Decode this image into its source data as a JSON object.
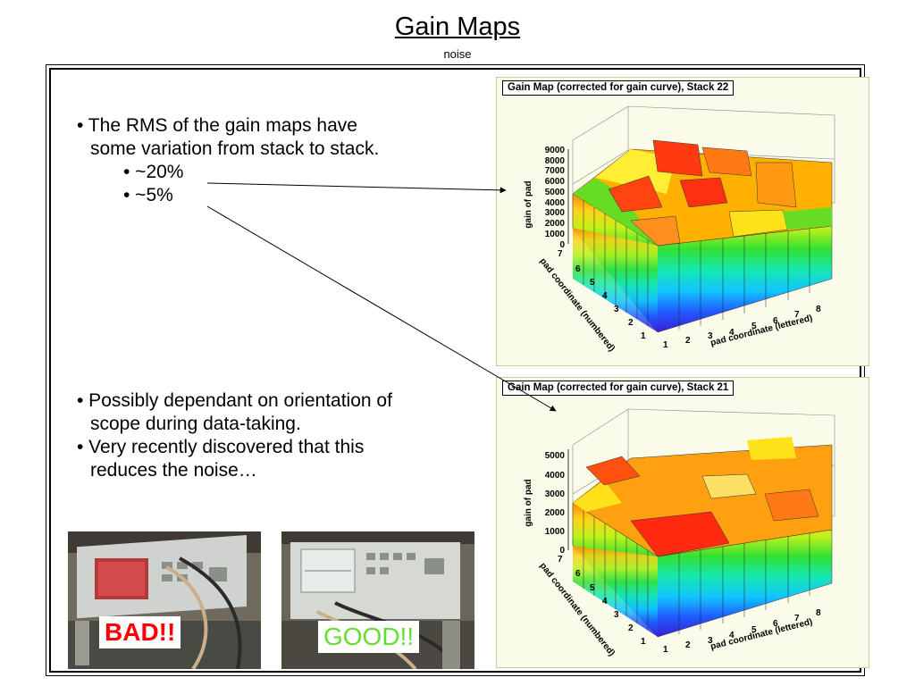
{
  "slide": {
    "title": "Gain Maps",
    "subtitle": "noise"
  },
  "bullets_top": {
    "line1": "• The RMS of the gain maps have",
    "line2": "some variation from stack to stack.",
    "sub1": "• ~20%",
    "sub2": "• ~5%"
  },
  "bullets_bottom": {
    "line1": "• Possibly dependant on orientation of",
    "line2": "scope during data-taking.",
    "line3": "• Very recently discovered that this",
    "line4": "reduces the noise…"
  },
  "plots": [
    {
      "title": "Gain Map (corrected for gain curve), Stack 22",
      "zlabel": "gain of pad",
      "ylabel": "pad coordinate (numbered)",
      "xlabel": "pad coordinate (lettered)",
      "zticks": [
        "0",
        "1000",
        "2000",
        "3000",
        "4000",
        "5000",
        "6000",
        "7000",
        "8000",
        "9000"
      ],
      "yticks": [
        "1",
        "2",
        "3",
        "4",
        "5",
        "6",
        "7"
      ],
      "xticks": [
        "1",
        "2",
        "3",
        "4",
        "5",
        "6",
        "7",
        "8"
      ]
    },
    {
      "title": "Gain Map (corrected for gain curve), Stack 21",
      "zlabel": "gain of pad",
      "ylabel": "pad coordinate (numbered)",
      "xlabel": "pad coordinate (lettered)",
      "zticks": [
        "0",
        "1000",
        "2000",
        "3000",
        "4000",
        "5000"
      ],
      "yticks": [
        "1",
        "2",
        "3",
        "4",
        "5",
        "6",
        "7"
      ],
      "xticks": [
        "1",
        "2",
        "3",
        "4",
        "5",
        "6",
        "7",
        "8"
      ]
    }
  ],
  "photos": {
    "bad_label": "BAD!!",
    "good_label": "GOOD!!"
  },
  "colors": {
    "bad": "#ff0000",
    "good": "#66dd33",
    "plot_bg": "#fbfbe9"
  }
}
